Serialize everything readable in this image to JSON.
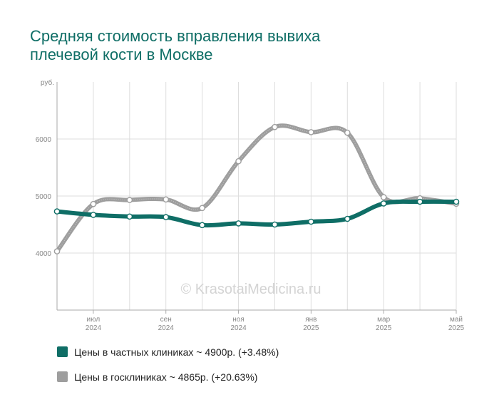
{
  "colors": {
    "private": "#0f6e66",
    "public": "#9e9e9e",
    "title": "#0f6e66",
    "grid": "#dddddd",
    "axis_text": "#888888"
  },
  "chart_data": {
    "type": "line",
    "title": [
      "Средняя стоимость вправления вывиха",
      "плечевой кости в Москве"
    ],
    "ylabel": "руб.",
    "watermark": "© KrasotaiMedicina.ru",
    "ylim": [
      3000,
      7000
    ],
    "yticks": [
      4000,
      5000,
      6000
    ],
    "grid": true,
    "x": [
      "2024-06",
      "2024-07",
      "2024-08",
      "2024-09",
      "2024-10",
      "2024-11",
      "2024-12",
      "2025-01",
      "2025-02",
      "2025-03",
      "2025-04",
      "2025-05"
    ],
    "xtick_labels": [
      {
        "x": "2024-07",
        "month": "июл",
        "year": "2024"
      },
      {
        "x": "2024-09",
        "month": "сен",
        "year": "2024"
      },
      {
        "x": "2024-11",
        "month": "ноя",
        "year": "2024"
      },
      {
        "x": "2025-01",
        "month": "янв",
        "year": "2025"
      },
      {
        "x": "2025-03",
        "month": "мар",
        "year": "2025"
      },
      {
        "x": "2025-05",
        "month": "май",
        "year": "2025"
      }
    ],
    "series": [
      {
        "name": "Цены в частных клиниках",
        "color": "#0f6e66",
        "values": [
          4730,
          4670,
          4640,
          4630,
          4490,
          4520,
          4500,
          4550,
          4600,
          4870,
          4900,
          4900
        ]
      },
      {
        "name": "Цены в госклиниках",
        "color": "#9e9e9e",
        "values": [
          4030,
          4860,
          4930,
          4940,
          4790,
          5610,
          6210,
          6120,
          6110,
          4980,
          4960,
          4865
        ]
      }
    ]
  },
  "legend": {
    "private": "Цены в частных клиниках ~ 4900р. (+3.48%)",
    "public": "Цены в госклиниках ~ 4865р. (+20.63%)"
  }
}
